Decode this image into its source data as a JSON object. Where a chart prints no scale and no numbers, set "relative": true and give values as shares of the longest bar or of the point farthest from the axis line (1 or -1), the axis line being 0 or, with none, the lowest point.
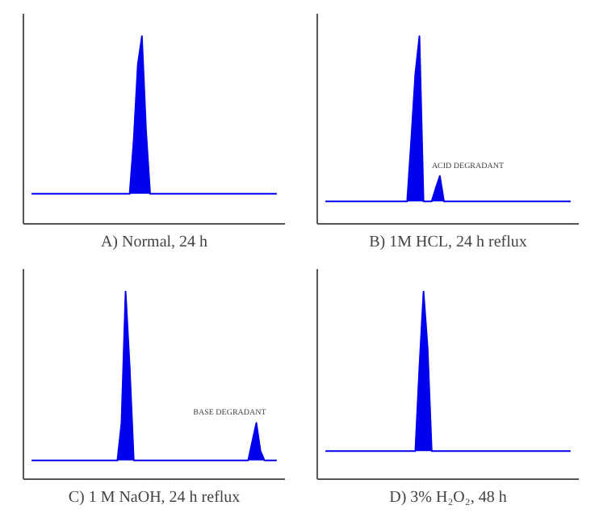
{
  "chart_data": [
    {
      "type": "area",
      "xlabel": "A) Normal, 24 h",
      "relative": true,
      "tick_labels": false,
      "categories": [
        null,
        null,
        null,
        null,
        null,
        null,
        null,
        null,
        null,
        null,
        null,
        null,
        null,
        null,
        null,
        null,
        null,
        null,
        null,
        null,
        null,
        null,
        null,
        null,
        null,
        null,
        null,
        null,
        null,
        null,
        null,
        null,
        null,
        null,
        null,
        null,
        null,
        null,
        null,
        null,
        null,
        null,
        null,
        null,
        null,
        null,
        null,
        null,
        null,
        null,
        null,
        null,
        null,
        null,
        null,
        null,
        null,
        null,
        null,
        null,
        null
      ],
      "series": [
        {
          "color": "#0000ee",
          "values": [
            0.16,
            0.16,
            0.16,
            0.16,
            0.16,
            0.16,
            0.16,
            0.16,
            0.16,
            0.16,
            0.16,
            0.16,
            0.16,
            0.16,
            0.16,
            0.16,
            0.16,
            0.16,
            0.16,
            0.16,
            0.16,
            0.16,
            0.16,
            0.16,
            0.16,
            0.45,
            0.85,
            1.0,
            0.5,
            0.16,
            0.16,
            0.16,
            0.16,
            0.16,
            0.16,
            0.16,
            0.16,
            0.16,
            0.16,
            0.16,
            0.16,
            0.16,
            0.16,
            0.16,
            0.16,
            0.16,
            0.16,
            0.16,
            0.16,
            0.16,
            0.16,
            0.16,
            0.16,
            0.16,
            0.16,
            0.16,
            0.16,
            0.16,
            0.16,
            0.16,
            0.16
          ]
        }
      ]
    },
    {
      "type": "area",
      "xlabel": "B) 1M HCL, 24 h reflux",
      "relative": true,
      "tick_labels": false,
      "categories": [
        null,
        null,
        null,
        null,
        null,
        null,
        null,
        null,
        null,
        null,
        null,
        null,
        null,
        null,
        null,
        null,
        null,
        null,
        null,
        null,
        null,
        null,
        null,
        null,
        null,
        null,
        null,
        null,
        null,
        null,
        null,
        null,
        null,
        null,
        null,
        null,
        null,
        null,
        null,
        null,
        null,
        null,
        null,
        null,
        null,
        null,
        null,
        null,
        null,
        null,
        null,
        null,
        null,
        null,
        null,
        null,
        null,
        null,
        null,
        null,
        null
      ],
      "annotations": [
        "ACID DEGRADANT"
      ],
      "series": [
        {
          "color": "#0000ee",
          "values": [
            0.12,
            0.12,
            0.12,
            0.12,
            0.12,
            0.12,
            0.12,
            0.12,
            0.12,
            0.12,
            0.12,
            0.12,
            0.12,
            0.12,
            0.12,
            0.12,
            0.12,
            0.12,
            0.12,
            0.12,
            0.12,
            0.45,
            0.8,
            1.0,
            0.12,
            0.12,
            0.12,
            0.19,
            0.255,
            0.12,
            0.12,
            0.12,
            0.12,
            0.12,
            0.12,
            0.12,
            0.12,
            0.12,
            0.12,
            0.12,
            0.12,
            0.12,
            0.12,
            0.12,
            0.12,
            0.12,
            0.12,
            0.12,
            0.12,
            0.12,
            0.12,
            0.12,
            0.12,
            0.12,
            0.12,
            0.12,
            0.12,
            0.12,
            0.12,
            0.12,
            0.12
          ]
        }
      ]
    },
    {
      "type": "area",
      "xlabel": "C) 1 M NaOH, 24 h reflux",
      "relative": true,
      "tick_labels": false,
      "categories": [
        null,
        null,
        null,
        null,
        null,
        null,
        null,
        null,
        null,
        null,
        null,
        null,
        null,
        null,
        null,
        null,
        null,
        null,
        null,
        null,
        null,
        null,
        null,
        null,
        null,
        null,
        null,
        null,
        null,
        null,
        null,
        null,
        null,
        null,
        null,
        null,
        null,
        null,
        null,
        null,
        null,
        null,
        null,
        null,
        null,
        null,
        null,
        null,
        null,
        null,
        null,
        null,
        null,
        null,
        null,
        null,
        null,
        null,
        null,
        null,
        null
      ],
      "annotations": [
        "BASE DEGRADANT"
      ],
      "series": [
        {
          "color": "#0000ee",
          "values": [
            0.1,
            0.1,
            0.1,
            0.1,
            0.1,
            0.1,
            0.1,
            0.1,
            0.1,
            0.1,
            0.1,
            0.1,
            0.1,
            0.1,
            0.1,
            0.1,
            0.1,
            0.1,
            0.1,
            0.1,
            0.1,
            0.1,
            0.3,
            1.0,
            0.6,
            0.1,
            0.1,
            0.1,
            0.1,
            0.1,
            0.1,
            0.1,
            0.1,
            0.1,
            0.1,
            0.1,
            0.1,
            0.1,
            0.1,
            0.1,
            0.1,
            0.1,
            0.1,
            0.1,
            0.1,
            0.1,
            0.1,
            0.1,
            0.1,
            0.1,
            0.1,
            0.1,
            0.1,
            0.1,
            0.2,
            0.3,
            0.15,
            0.1,
            0.1,
            0.1,
            0.1
          ]
        }
      ]
    },
    {
      "type": "area",
      "xlabel": "D) 3% H₂O₂, 48 h",
      "relative": true,
      "tick_labels": false,
      "categories": [
        null,
        null,
        null,
        null,
        null,
        null,
        null,
        null,
        null,
        null,
        null,
        null,
        null,
        null,
        null,
        null,
        null,
        null,
        null,
        null,
        null,
        null,
        null,
        null,
        null,
        null,
        null,
        null,
        null,
        null,
        null,
        null,
        null,
        null,
        null,
        null,
        null,
        null,
        null,
        null,
        null,
        null,
        null,
        null,
        null,
        null,
        null,
        null,
        null,
        null,
        null,
        null,
        null,
        null,
        null,
        null,
        null,
        null,
        null,
        null,
        null
      ],
      "series": [
        {
          "color": "#0000ee",
          "values": [
            0.15,
            0.15,
            0.15,
            0.15,
            0.15,
            0.15,
            0.15,
            0.15,
            0.15,
            0.15,
            0.15,
            0.15,
            0.15,
            0.15,
            0.15,
            0.15,
            0.15,
            0.15,
            0.15,
            0.15,
            0.15,
            0.15,
            0.15,
            0.6,
            1.0,
            0.7,
            0.15,
            0.15,
            0.15,
            0.15,
            0.15,
            0.15,
            0.15,
            0.15,
            0.15,
            0.15,
            0.15,
            0.15,
            0.15,
            0.15,
            0.15,
            0.15,
            0.15,
            0.15,
            0.15,
            0.15,
            0.15,
            0.15,
            0.15,
            0.15,
            0.15,
            0.15,
            0.15,
            0.15,
            0.15,
            0.15,
            0.15,
            0.15,
            0.15,
            0.15,
            0.15
          ]
        }
      ]
    }
  ]
}
